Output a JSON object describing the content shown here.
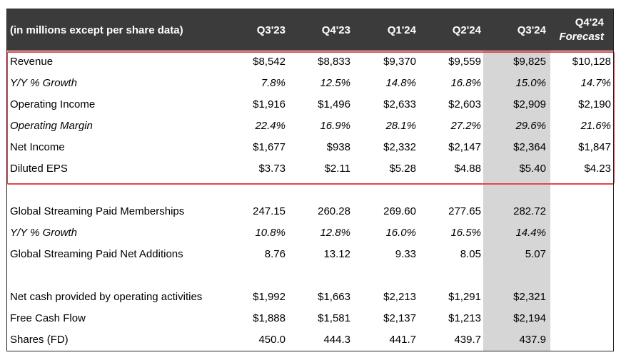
{
  "header": {
    "label": "(in millions except per share data)",
    "columns": [
      "Q3'23",
      "Q4'23",
      "Q1'24",
      "Q2'24",
      "Q3'24"
    ],
    "forecast_line1": "Q4'24",
    "forecast_line2": "Forecast"
  },
  "colors": {
    "header_bg": "#3b3b3b",
    "highlight_border": "#e0474c",
    "shade": "#d6d6d6"
  },
  "rows": [
    {
      "label": "Revenue",
      "italic": false,
      "values": [
        "$8,542",
        "$8,833",
        "$9,370",
        "$9,559",
        "$9,825",
        "$10,128"
      ]
    },
    {
      "label": "Y/Y % Growth",
      "italic": true,
      "values": [
        "7.8%",
        "12.5%",
        "14.8%",
        "16.8%",
        "15.0%",
        "14.7%"
      ]
    },
    {
      "label": "Operating Income",
      "italic": false,
      "values": [
        "$1,916",
        "$1,496",
        "$2,633",
        "$2,603",
        "$2,909",
        "$2,190"
      ]
    },
    {
      "label": "Operating Margin",
      "italic": true,
      "values": [
        "22.4%",
        "16.9%",
        "28.1%",
        "27.2%",
        "29.6%",
        "21.6%"
      ]
    },
    {
      "label": "Net Income",
      "italic": false,
      "values": [
        "$1,677",
        "$938",
        "$2,332",
        "$2,147",
        "$2,364",
        "$1,847"
      ]
    },
    {
      "label": "Diluted EPS",
      "italic": false,
      "values": [
        "$3.73",
        "$2.11",
        "$5.28",
        "$4.88",
        "$5.40",
        "$4.23"
      ]
    },
    {
      "label": "Global Streaming Paid Memberships",
      "italic": false,
      "values": [
        "247.15",
        "260.28",
        "269.60",
        "277.65",
        "282.72",
        ""
      ]
    },
    {
      "label": "Y/Y % Growth",
      "italic": true,
      "values": [
        "10.8%",
        "12.8%",
        "16.0%",
        "16.5%",
        "14.4%",
        ""
      ]
    },
    {
      "label": "Global Streaming Paid Net Additions",
      "italic": false,
      "values": [
        "8.76",
        "13.12",
        "9.33",
        "8.05",
        "5.07",
        ""
      ]
    },
    {
      "label": "Net cash provided by operating activities",
      "italic": false,
      "values": [
        "$1,992",
        "$1,663",
        "$2,213",
        "$1,291",
        "$2,321",
        ""
      ]
    },
    {
      "label": "Free Cash Flow",
      "italic": false,
      "values": [
        "$1,888",
        "$1,581",
        "$2,137",
        "$1,213",
        "$2,194",
        ""
      ]
    },
    {
      "label": "Shares (FD)",
      "italic": false,
      "values": [
        "450.0",
        "444.3",
        "441.7",
        "439.7",
        "437.9",
        ""
      ]
    }
  ]
}
